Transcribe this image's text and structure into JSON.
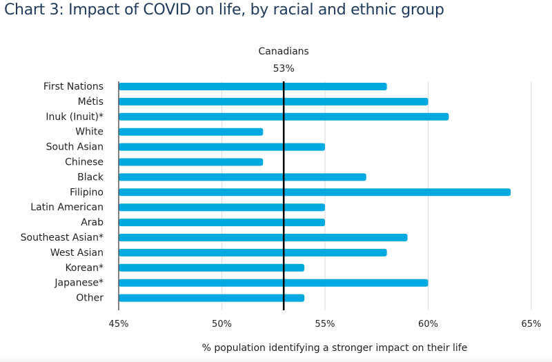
{
  "chart_data": {
    "type": "bar",
    "orientation": "horizontal",
    "title": "Chart 3: Impact of COVID on life, by racial and ethnic group",
    "xlabel": "% population identifying a stronger impact on their life",
    "ylabel": "",
    "xlim": [
      45,
      65
    ],
    "x_ticks": [
      45,
      50,
      55,
      60,
      65
    ],
    "x_tick_labels": [
      "45%",
      "50%",
      "55%",
      "60%",
      "65%"
    ],
    "grid": true,
    "bar_color": "#00a9e0",
    "categories": [
      "First Nations",
      "Métis",
      "Inuk (Inuit)*",
      "White",
      "South Asian",
      "Chinese",
      "Black",
      "Filipino",
      "Latin American",
      "Arab",
      "Southeast Asian*",
      "West Asian",
      "Korean*",
      "Japanese*",
      "Other"
    ],
    "values": [
      58,
      60,
      61,
      52,
      55,
      52,
      57,
      64,
      55,
      55,
      59,
      58,
      54,
      60,
      54
    ],
    "reference_line": {
      "label": "Canadians",
      "value": 53,
      "value_label": "53%",
      "color": "#000000"
    }
  }
}
